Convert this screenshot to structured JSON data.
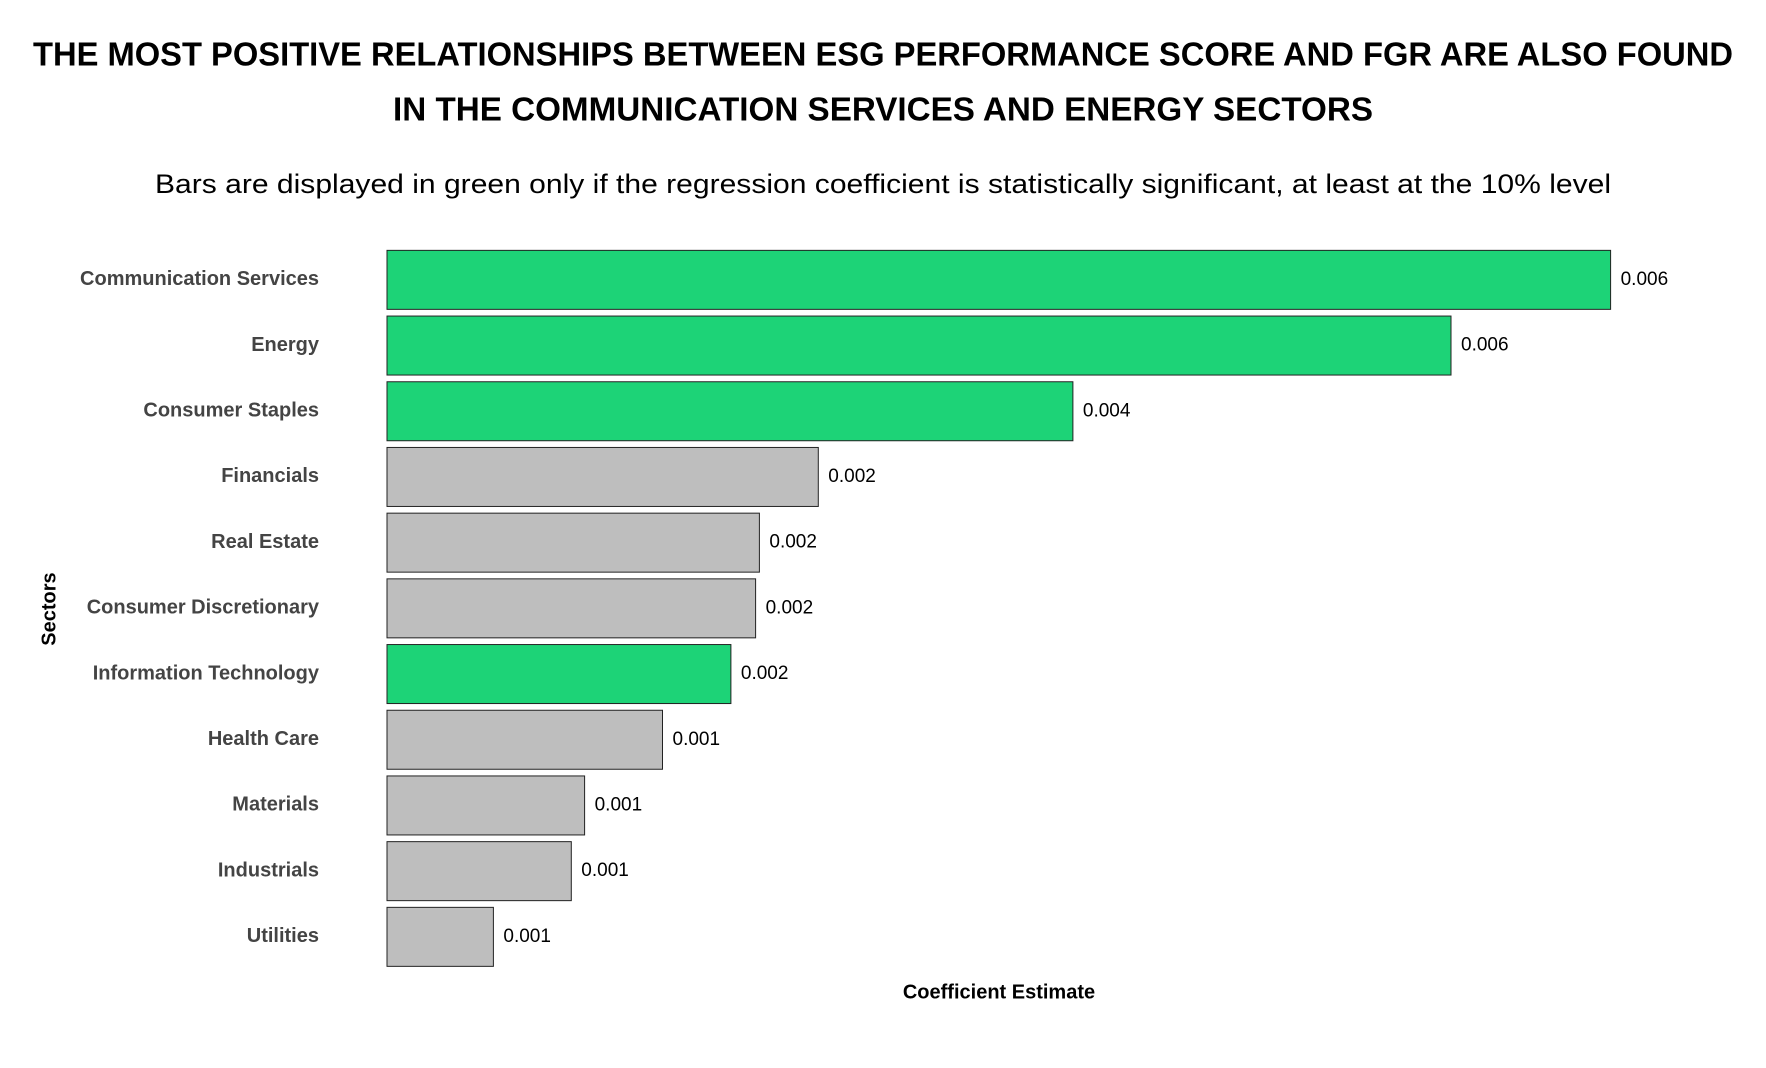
{
  "chart_data": {
    "type": "hbar",
    "title": [
      "THE MOST POSITIVE RELATIONSHIPS BETWEEN ESG PERFORMANCE SCORE AND FGR ARE ALSO FOUND",
      "IN THE COMMUNICATION SERVICES AND ENERGY SECTORS"
    ],
    "subtitle": "Bars are displayed in green only if the regression coefficient is statistically significant, at least at the 10% level",
    "x_label": "Coefficient Estimate",
    "y_label": "Sectors",
    "categories": [
      "Communication Services",
      "Energy",
      "Consumer Staples",
      "Financials",
      "Real Estate",
      "Consumer Discretionary",
      "Information Technology",
      "Health Care",
      "Materials",
      "Industrials",
      "Utilities"
    ],
    "values": [
      0.00644,
      0.0056,
      0.00361,
      0.00227,
      0.00196,
      0.00194,
      0.00181,
      0.00145,
      0.00104,
      0.00097,
      0.00056
    ],
    "value_labels": [
      "0.006",
      "0.006",
      "0.004",
      "0.002",
      "0.002",
      "0.002",
      "0.002",
      "0.001",
      "0.001",
      "0.001",
      "0.001"
    ],
    "colors": [
      "#1dd377",
      "#1dd377",
      "#1dd377",
      "#bebebe",
      "#bebebe",
      "#bebebe",
      "#1dd377",
      "#bebebe",
      "#bebebe",
      "#bebebe",
      "#bebebe"
    ],
    "xlim": [
      0,
      0.007
    ]
  }
}
